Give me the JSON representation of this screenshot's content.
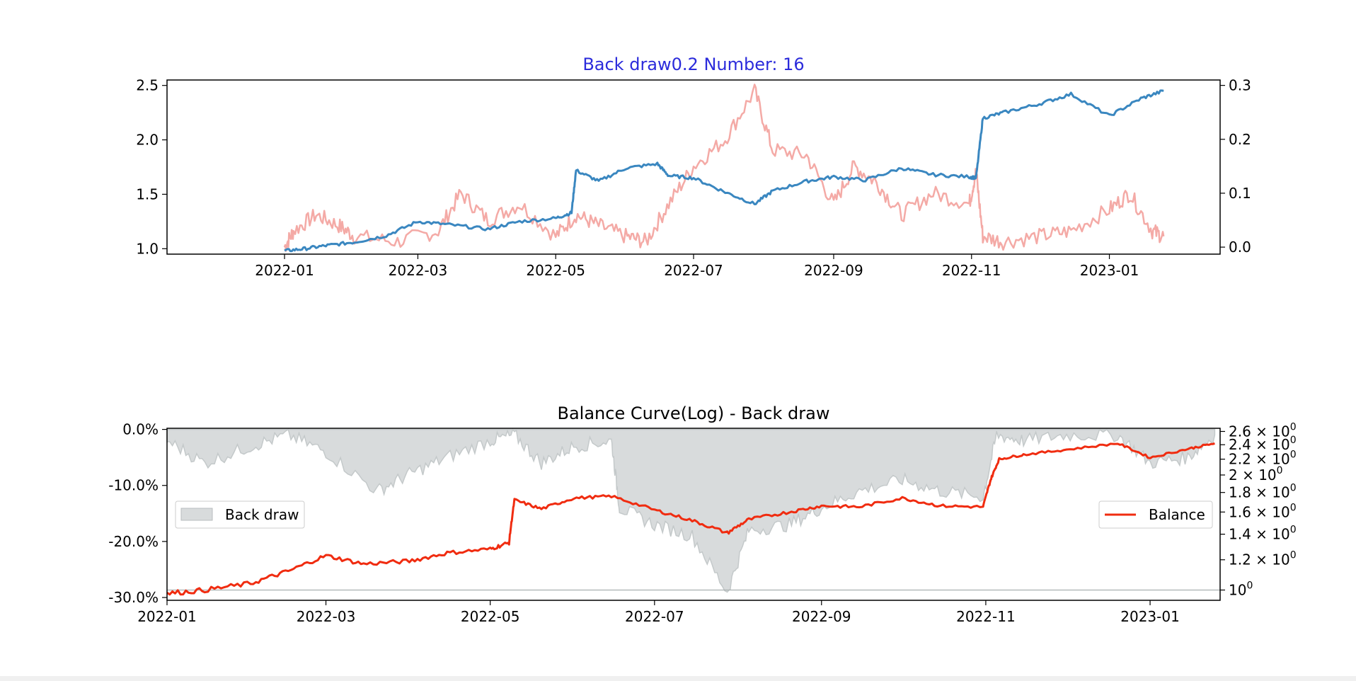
{
  "chart_data": [
    {
      "type": "line",
      "title": "Back draw0.2 Number: 16",
      "title_color": "#2b2bdb",
      "x_ticks": [
        "2022-01",
        "2022-03",
        "2022-05",
        "2022-07",
        "2022-09",
        "2022-11",
        "2023-01"
      ],
      "y_left_ticks": [
        "1.0",
        "1.5",
        "2.0",
        "2.5"
      ],
      "y_right_ticks": [
        "0.0",
        "0.1",
        "0.2",
        "0.3"
      ],
      "ylim_left": [
        0.95,
        2.55
      ],
      "ylim_right": [
        -0.013,
        0.31
      ],
      "grid": false,
      "series": [
        {
          "axis": "left",
          "color": "#3a87c0",
          "x": [
            "2022-01-01",
            "2022-01-10",
            "2022-01-20",
            "2022-02-01",
            "2022-02-15",
            "2022-03-01",
            "2022-03-15",
            "2022-04-01",
            "2022-04-15",
            "2022-05-01",
            "2022-05-08",
            "2022-05-10",
            "2022-05-20",
            "2022-06-01",
            "2022-06-15",
            "2022-06-20",
            "2022-07-01",
            "2022-07-15",
            "2022-07-28",
            "2022-08-05",
            "2022-08-20",
            "2022-09-01",
            "2022-09-15",
            "2022-10-01",
            "2022-10-15",
            "2022-10-31",
            "2022-11-03",
            "2022-11-06",
            "2022-11-15",
            "2022-12-01",
            "2022-12-15",
            "2023-01-01",
            "2023-01-15",
            "2023-01-25"
          ],
          "y": [
            0.98,
            1.0,
            1.03,
            1.06,
            1.12,
            1.25,
            1.22,
            1.18,
            1.25,
            1.28,
            1.33,
            1.72,
            1.62,
            1.74,
            1.78,
            1.67,
            1.65,
            1.52,
            1.41,
            1.53,
            1.62,
            1.66,
            1.63,
            1.74,
            1.68,
            1.66,
            1.65,
            2.2,
            2.25,
            2.33,
            2.42,
            2.22,
            2.38,
            2.45
          ]
        },
        {
          "axis": "right",
          "color": "#f4aaa6",
          "x": [
            "2022-01-01",
            "2022-01-05",
            "2022-01-15",
            "2022-01-25",
            "2022-02-01",
            "2022-02-20",
            "2022-03-10",
            "2022-03-20",
            "2022-04-01",
            "2022-04-15",
            "2022-05-01",
            "2022-05-10",
            "2022-05-20",
            "2022-06-01",
            "2022-06-10",
            "2022-06-20",
            "2022-07-01",
            "2022-07-15",
            "2022-07-28",
            "2022-08-05",
            "2022-08-20",
            "2022-09-01",
            "2022-09-10",
            "2022-09-20",
            "2022-10-01",
            "2022-10-15",
            "2022-10-31",
            "2022-11-03",
            "2022-11-06",
            "2022-11-15",
            "2022-12-01",
            "2022-12-15",
            "2023-01-01",
            "2023-01-10",
            "2023-01-20",
            "2023-01-25"
          ],
          "y": [
            0.0,
            0.03,
            0.06,
            0.04,
            0.02,
            0.01,
            0.03,
            0.1,
            0.05,
            0.08,
            0.02,
            0.06,
            0.04,
            0.02,
            0.01,
            0.08,
            0.15,
            0.2,
            0.29,
            0.18,
            0.17,
            0.08,
            0.15,
            0.12,
            0.06,
            0.1,
            0.08,
            0.14,
            0.02,
            0.01,
            0.02,
            0.03,
            0.07,
            0.1,
            0.03,
            0.02
          ]
        }
      ]
    },
    {
      "type": "line",
      "title": "Balance Curve(Log) - Back draw",
      "title_color": "#000000",
      "x_ticks": [
        "2022-01",
        "2022-03",
        "2022-05",
        "2022-07",
        "2022-09",
        "2022-11",
        "2023-01"
      ],
      "y_left_ticks": [
        "0.0%",
        "-10.0%",
        "-20.0%",
        "-30.0%"
      ],
      "y_right_tick_values": [
        1.0,
        1.2,
        1.4,
        1.6,
        1.8,
        2.0,
        2.2,
        2.4,
        2.6
      ],
      "y_right_scale": "log",
      "ylim_left": [
        -30.5,
        0.2
      ],
      "ylim_right": [
        0.94,
        2.65
      ],
      "reference_line": 1.0,
      "grid": false,
      "legend_left": "Back draw",
      "legend_right": "Balance",
      "series": [
        {
          "name": "Back draw",
          "type": "area",
          "axis": "left",
          "color": "#d8dbdc",
          "x": [
            "2022-01-01",
            "2022-01-15",
            "2022-02-01",
            "2022-02-15",
            "2022-03-01",
            "2022-03-20",
            "2022-04-01",
            "2022-04-15",
            "2022-05-01",
            "2022-05-10",
            "2022-05-20",
            "2022-06-01",
            "2022-06-15",
            "2022-06-18",
            "2022-07-01",
            "2022-07-15",
            "2022-07-28",
            "2022-08-05",
            "2022-08-20",
            "2022-09-01",
            "2022-09-15",
            "2022-10-01",
            "2022-10-15",
            "2022-10-31",
            "2022-11-05",
            "2022-11-15",
            "2022-12-01",
            "2022-12-20",
            "2023-01-01",
            "2023-01-15",
            "2023-01-25"
          ],
          "y": [
            -2,
            -6,
            -3,
            -1,
            -4,
            -11,
            -8,
            -5,
            -2,
            -1,
            -6,
            -3,
            -2,
            -14,
            -17,
            -19,
            -29,
            -18,
            -17,
            -14,
            -11,
            -9,
            -11,
            -12,
            -1,
            -2,
            -1,
            -1,
            -6,
            -5,
            -1
          ]
        },
        {
          "name": "Balance",
          "axis": "right",
          "color": "#f02c10",
          "x": [
            "2022-01-01",
            "2022-01-15",
            "2022-02-01",
            "2022-02-15",
            "2022-03-01",
            "2022-03-15",
            "2022-04-01",
            "2022-04-15",
            "2022-05-01",
            "2022-05-08",
            "2022-05-10",
            "2022-05-20",
            "2022-06-01",
            "2022-06-15",
            "2022-07-01",
            "2022-07-15",
            "2022-07-28",
            "2022-08-05",
            "2022-08-20",
            "2022-09-01",
            "2022-09-15",
            "2022-10-01",
            "2022-10-15",
            "2022-10-31",
            "2022-11-03",
            "2022-11-06",
            "2022-11-15",
            "2022-12-01",
            "2022-12-20",
            "2023-01-01",
            "2023-01-15",
            "2023-01-25"
          ],
          "y": [
            0.98,
            1.0,
            1.04,
            1.12,
            1.23,
            1.17,
            1.19,
            1.25,
            1.28,
            1.33,
            1.72,
            1.63,
            1.74,
            1.76,
            1.62,
            1.52,
            1.41,
            1.53,
            1.6,
            1.66,
            1.65,
            1.74,
            1.66,
            1.65,
            1.96,
            2.2,
            2.26,
            2.33,
            2.42,
            2.22,
            2.34,
            2.42
          ]
        }
      ]
    }
  ]
}
